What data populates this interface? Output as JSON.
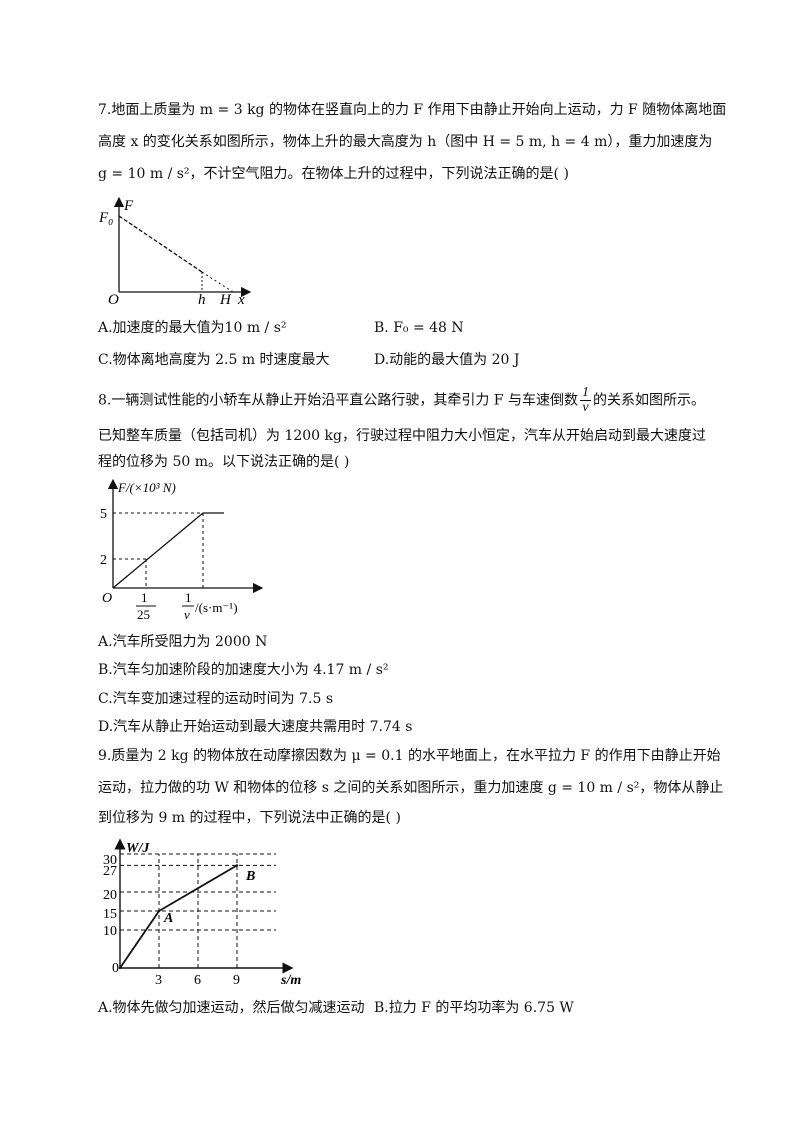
{
  "q7": {
    "lines": [
      "7.地面上质量为 m = 3 kg 的物体在竖直向上的力 F 作用下由静止开始向上运动，力 F 随物体离地面",
      "高度 x 的变化关系如图所示，物体上升的最大高度为 h（图中 H = 5 m, h = 4 m），重力加速度为",
      "g = 10 m / s²，不计空气阻力。在物体上升的过程中，下列说法正确的是(  )"
    ],
    "graph": {
      "y_axis": "F",
      "y_tick": "F₀",
      "x_axis": "x",
      "origin": "O",
      "x_ticks": [
        "h",
        "H"
      ]
    },
    "options": {
      "A": "A.加速度的最大值为10 m / s²",
      "B": "B. F₀ = 48 N",
      "C": "C.物体离地高度为 2.5 m 时速度最大",
      "D": "D.动能的最大值为 20 J"
    }
  },
  "q8": {
    "line1_a": "8.一辆测试性能的小轿车从静止开始沿平直公路行驶，其牵引力 F 与车速倒数",
    "line1_frac_num": "1",
    "line1_frac_den": "v",
    "line1_b": "的关系如图所示。",
    "line2": "已知整车质量（包括司机）为 1200 kg，行驶过程中阻力大小恒定，汽车从开始启动到最大速度过",
    "line3": "程的位移为 50 m。以下说法正确的是(  )",
    "graph": {
      "y_label": "F/(×10³ N)",
      "y_ticks": [
        "5",
        "2"
      ],
      "origin": "O",
      "x_tick_num": "1",
      "x_tick_den": "25",
      "x_label_num": "1",
      "x_label_den": "v",
      "x_label_unit": "/(s·m⁻¹)"
    },
    "options": {
      "A": "A.汽车所受阻力为 2000 N",
      "B": "B.汽车匀加速阶段的加速度大小为 4.17 m / s²",
      "C": "C.汽车变加速过程的运动时间为 7.5 s",
      "D": "D.汽车从静止开始运动到最大速度共需用时 7.74 s"
    }
  },
  "q9": {
    "lines": [
      "9.质量为 2 kg 的物体放在动摩擦因数为 μ = 0.1 的水平地面上，在水平拉力 F 的作用下由静止开始",
      "运动，拉力做的功 W 和物体的位移 s 之间的关系如图所示，重力加速度 g = 10 m / s²，物体从静止",
      "到位移为 9 m 的过程中，下列说法中正确的是(  )"
    ],
    "graph": {
      "y_label": "W/J",
      "y_ticks": [
        "30",
        "27",
        "20",
        "15",
        "10"
      ],
      "x_ticks": [
        "3",
        "6",
        "9"
      ],
      "x_label": "s/m",
      "origin": "0",
      "point_a": "A",
      "point_b": "B"
    },
    "chart_data": {
      "type": "line",
      "xlabel": "s/m",
      "ylabel": "W/J",
      "x": [
        0,
        3,
        9
      ],
      "y": [
        0,
        15,
        27
      ],
      "xlim": [
        0,
        11
      ],
      "ylim": [
        0,
        32
      ]
    },
    "options": {
      "A": "A.物体先做匀加速运动，然后做匀减速运动",
      "B": "B.拉力 F 的平均功率为 6.75 W"
    }
  }
}
